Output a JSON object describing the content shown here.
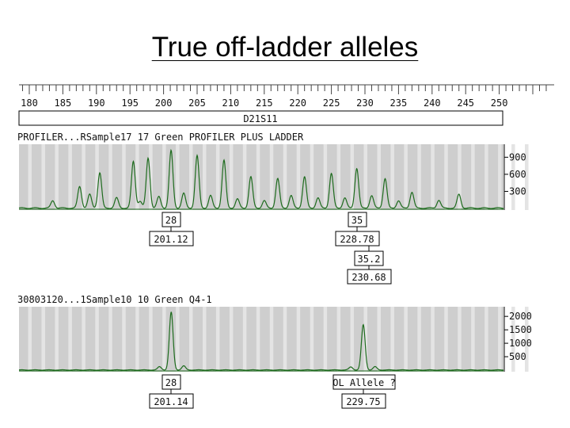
{
  "title": "True off-ladder alleles",
  "chart_data": {
    "type": "line",
    "x_axis": {
      "ticks": [
        180,
        185,
        190,
        195,
        200,
        205,
        210,
        215,
        220,
        225,
        230,
        235,
        240,
        245,
        250
      ],
      "xlim": [
        179,
        257
      ]
    },
    "locus": "D21S11",
    "panels": [
      {
        "name": "PROFILER...RSample17 17 Green  PROFILER PLUS LADDER",
        "ylim": [
          0,
          1100
        ],
        "y_ticks": [
          900,
          600,
          300
        ],
        "peaks": [
          {
            "x": 183.5,
            "h": 130
          },
          {
            "x": 187.5,
            "h": 380
          },
          {
            "x": 189.0,
            "h": 240
          },
          {
            "x": 190.5,
            "h": 620
          },
          {
            "x": 193.0,
            "h": 180
          },
          {
            "x": 195.5,
            "h": 820
          },
          {
            "x": 196.5,
            "h": 120
          },
          {
            "x": 197.7,
            "h": 880
          },
          {
            "x": 199.3,
            "h": 200
          },
          {
            "x": 201.12,
            "h": 1010
          },
          {
            "x": 203.0,
            "h": 260
          },
          {
            "x": 205.0,
            "h": 920
          },
          {
            "x": 207.0,
            "h": 220
          },
          {
            "x": 209.0,
            "h": 840
          },
          {
            "x": 211.0,
            "h": 160
          },
          {
            "x": 213.0,
            "h": 550
          },
          {
            "x": 215.0,
            "h": 130
          },
          {
            "x": 217.0,
            "h": 520
          },
          {
            "x": 219.0,
            "h": 220
          },
          {
            "x": 221.0,
            "h": 550
          },
          {
            "x": 223.0,
            "h": 180
          },
          {
            "x": 225.0,
            "h": 610
          },
          {
            "x": 227.0,
            "h": 180
          },
          {
            "x": 228.78,
            "h": 700
          },
          {
            "x": 231.0,
            "h": 220
          },
          {
            "x": 233.0,
            "h": 520
          },
          {
            "x": 235.0,
            "h": 130
          },
          {
            "x": 237.0,
            "h": 280
          },
          {
            "x": 241.0,
            "h": 140
          },
          {
            "x": 244.0,
            "h": 240
          }
        ],
        "labels": [
          {
            "allele": "28",
            "size": "201.12"
          },
          {
            "allele": "35",
            "size": "228.78"
          },
          {
            "allele": "35.2",
            "size": "230.68"
          }
        ]
      },
      {
        "name": "30803120...1Sample10 10 Green   Q4-1",
        "ylim": [
          0,
          2300
        ],
        "y_ticks": [
          2000,
          1500,
          1000,
          500
        ],
        "peaks": [
          {
            "x": 199.4,
            "h": 120
          },
          {
            "x": 201.14,
            "h": 2150
          },
          {
            "x": 203.0,
            "h": 150
          },
          {
            "x": 227.9,
            "h": 110
          },
          {
            "x": 229.75,
            "h": 1680
          },
          {
            "x": 231.5,
            "h": 120
          }
        ],
        "labels": [
          {
            "allele": "28",
            "size": "201.14"
          },
          {
            "allele": "OL Allele ?",
            "size": "229.75"
          }
        ]
      }
    ]
  }
}
